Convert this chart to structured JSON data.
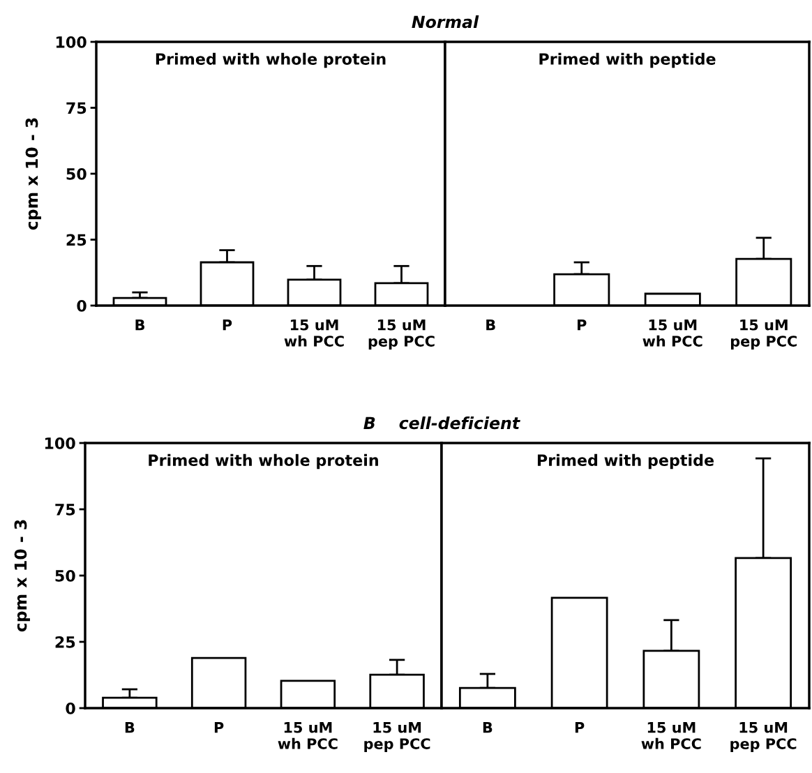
{
  "chart_data": [
    {
      "type": "bar",
      "title": "Primed with whole protein",
      "annotations": [
        "Normal"
      ],
      "ylabel": "cpm x 10 - 3",
      "categories": [
        "B",
        "P",
        "15 uM\nwh PCC",
        "15 uM\npep PCC"
      ],
      "values": [
        2.9,
        16.4,
        9.8,
        8.5
      ],
      "errors": [
        [
          2.9,
          5
        ],
        [
          16.4,
          21
        ],
        [
          9.8,
          15
        ],
        [
          8.5,
          15
        ]
      ],
      "color": "#ffffff",
      "ylim": [
        0,
        100
      ],
      "yticks": [
        0,
        25,
        50,
        75,
        100
      ],
      "grid": false
    },
    {
      "type": "bar",
      "title": "Primed with peptide",
      "categories": [
        "B",
        "P",
        "15 uM\nwh PCC",
        "15 uM\npep PCC"
      ],
      "values": [
        null,
        11.9,
        4.5,
        17.7
      ],
      "errors": [
        null,
        [
          11.9,
          16.4
        ],
        null,
        [
          17.7,
          25.7
        ]
      ],
      "color": "#ffffff",
      "ylim": [
        0,
        100
      ],
      "yticks": [
        0,
        25,
        50,
        75,
        100
      ],
      "tick_labels": "x",
      "grid": false
    },
    {
      "type": "bar",
      "title": "Primed with whole protein",
      "annotations": [
        "B    cell-deficient"
      ],
      "ylabel": "cpm x 10 - 3",
      "categories": [
        "B",
        "P",
        "15 uM\nwh PCC",
        "15 uM\npep PCC"
      ],
      "values": [
        3.9,
        18.9,
        10.3,
        12.6
      ],
      "errors": [
        [
          3.9,
          7.1
        ],
        null,
        null,
        [
          12.6,
          18.2
        ]
      ],
      "color": "#ffffff",
      "ylim": [
        0,
        100
      ],
      "yticks": [
        0,
        25,
        50,
        75,
        100
      ],
      "grid": false
    },
    {
      "type": "bar",
      "title": "Primed with peptide",
      "categories": [
        "B",
        "P",
        "15 uM\nwh PCC",
        "15 uM\npep PCC"
      ],
      "values": [
        7.6,
        41.6,
        21.6,
        56.6
      ],
      "errors": [
        [
          7.6,
          12.9
        ],
        null,
        [
          21.6,
          33.2
        ],
        [
          56.6,
          94.2
        ]
      ],
      "color": "#ffffff",
      "ylim": [
        0,
        100
      ],
      "yticks": [
        0,
        25,
        50,
        75,
        100
      ],
      "tick_labels": "x",
      "grid": false
    }
  ]
}
